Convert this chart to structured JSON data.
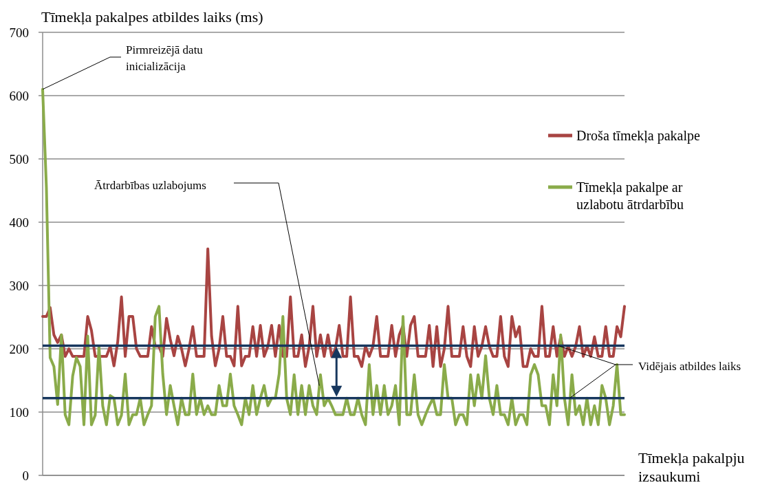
{
  "chart_data": {
    "type": "line",
    "ylabel": "Tīmekļa pakalpes atbildes laiks (ms)",
    "xlabel": "Tīmekļa pakalpju izsaukumi",
    "categories": [
      null,
      null,
      null,
      null,
      null,
      null,
      null,
      null,
      null,
      null,
      null,
      null,
      null,
      null,
      null,
      null,
      null,
      null,
      null,
      null,
      null,
      null,
      null,
      null,
      null,
      null,
      null,
      null,
      null,
      null,
      null,
      null,
      null,
      null,
      null,
      null,
      null,
      null,
      null,
      null,
      null,
      null,
      null,
      null,
      null,
      null,
      null,
      null,
      null,
      null,
      null,
      null,
      null,
      null,
      null,
      null,
      null,
      null,
      null,
      null,
      null,
      null,
      null,
      null,
      null,
      null,
      null,
      null,
      null,
      null,
      null,
      null,
      null,
      null,
      null,
      null,
      null,
      null,
      null,
      null,
      null,
      null,
      null,
      null,
      null,
      null,
      null,
      null,
      null,
      null,
      null,
      null,
      null,
      null,
      null,
      null,
      null,
      null,
      null,
      null,
      null,
      null,
      null,
      null,
      null,
      null,
      null,
      null,
      null,
      null,
      null,
      null,
      null,
      null,
      null,
      null,
      null,
      null,
      null,
      null,
      null,
      null,
      null,
      null,
      null,
      null,
      null,
      null,
      null,
      null,
      null,
      null,
      null,
      null,
      null,
      null,
      null,
      null,
      null,
      null,
      null,
      null,
      null,
      null,
      null,
      null,
      null,
      null,
      null,
      null,
      null,
      null,
      null,
      null,
      null,
      null
    ],
    "series": [
      {
        "name": "Droša tīmekļa pakalpe",
        "color": "#a84442",
        "values": [
          251,
          251,
          265,
          222,
          210,
          222,
          188,
          200,
          188,
          188,
          188,
          188,
          251,
          229,
          188,
          188,
          188,
          188,
          204,
          173,
          211,
          282,
          188,
          251,
          251,
          200,
          188,
          188,
          188,
          235,
          204,
          204,
          188,
          248,
          215,
          189,
          220,
          200,
          173,
          200,
          235,
          188,
          188,
          188,
          358,
          220,
          173,
          200,
          251,
          188,
          188,
          173,
          267,
          173,
          188,
          188,
          235,
          188,
          237,
          188,
          204,
          237,
          188,
          237,
          188,
          188,
          282,
          188,
          188,
          222,
          172,
          204,
          267,
          188,
          222,
          188,
          222,
          188,
          200,
          237,
          188,
          188,
          282,
          188,
          188,
          172,
          204,
          188,
          204,
          251,
          188,
          188,
          188,
          237,
          188,
          222,
          237,
          188,
          237,
          251,
          188,
          188,
          188,
          237,
          172,
          235,
          172,
          200,
          267,
          188,
          188,
          188,
          235,
          188,
          172,
          235,
          188,
          204,
          235,
          204,
          188,
          188,
          251,
          188,
          172,
          251,
          219,
          235,
          172,
          172,
          200,
          188,
          188,
          267,
          188,
          188,
          235,
          188,
          219,
          188,
          204,
          188,
          204,
          235,
          188,
          204,
          188,
          219,
          188,
          188,
          235,
          188,
          188,
          235,
          219,
          267
        ]
      },
      {
        "name": "Tīmekļa pakalpe ar uzlabotu ātrdarbību",
        "color": "#8aab4a",
        "values": [
          610,
          455,
          186,
          172,
          112,
          222,
          96,
          80,
          157,
          186,
          172,
          80,
          220,
          80,
          95,
          204,
          110,
          80,
          126,
          122,
          80,
          95,
          160,
          80,
          96,
          96,
          122,
          80,
          96,
          110,
          251,
          267,
          160,
          96,
          142,
          110,
          80,
          122,
          96,
          96,
          160,
          96,
          122,
          96,
          110,
          96,
          96,
          142,
          110,
          110,
          160,
          110,
          96,
          80,
          122,
          96,
          142,
          96,
          122,
          142,
          110,
          122,
          122,
          160,
          251,
          122,
          96,
          159,
          96,
          142,
          96,
          142,
          110,
          96,
          159,
          110,
          122,
          110,
          96,
          96,
          96,
          122,
          96,
          96,
          122,
          96,
          80,
          175,
          96,
          142,
          96,
          142,
          96,
          110,
          142,
          80,
          251,
          96,
          96,
          159,
          96,
          80,
          96,
          110,
          122,
          96,
          96,
          175,
          122,
          122,
          80,
          96,
          96,
          80,
          159,
          110,
          159,
          122,
          189,
          122,
          96,
          142,
          96,
          96,
          80,
          122,
          80,
          96,
          96,
          80,
          159,
          175,
          159,
          110,
          110,
          80,
          159,
          110,
          222,
          122,
          80,
          159,
          96,
          110,
          80,
          122,
          80,
          110,
          80,
          142,
          122,
          80,
          110,
          175,
          96,
          96
        ]
      }
    ],
    "ylim": [
      0,
      700
    ],
    "yticks": [
      0,
      100,
      200,
      300,
      400,
      500,
      600,
      700
    ],
    "grid": "y",
    "legend": "right",
    "line_style": "solid",
    "marker": "none",
    "ref_lines": [
      {
        "axis": "y",
        "value": 205,
        "color": "#17375e"
      },
      {
        "axis": "y",
        "value": 122,
        "color": "#17375e"
      }
    ],
    "annotations": [
      "Pirmreizējā datu inicializācija",
      "Ātrdarbības uzlabojums",
      "Vidējais atbildes laiks"
    ]
  }
}
